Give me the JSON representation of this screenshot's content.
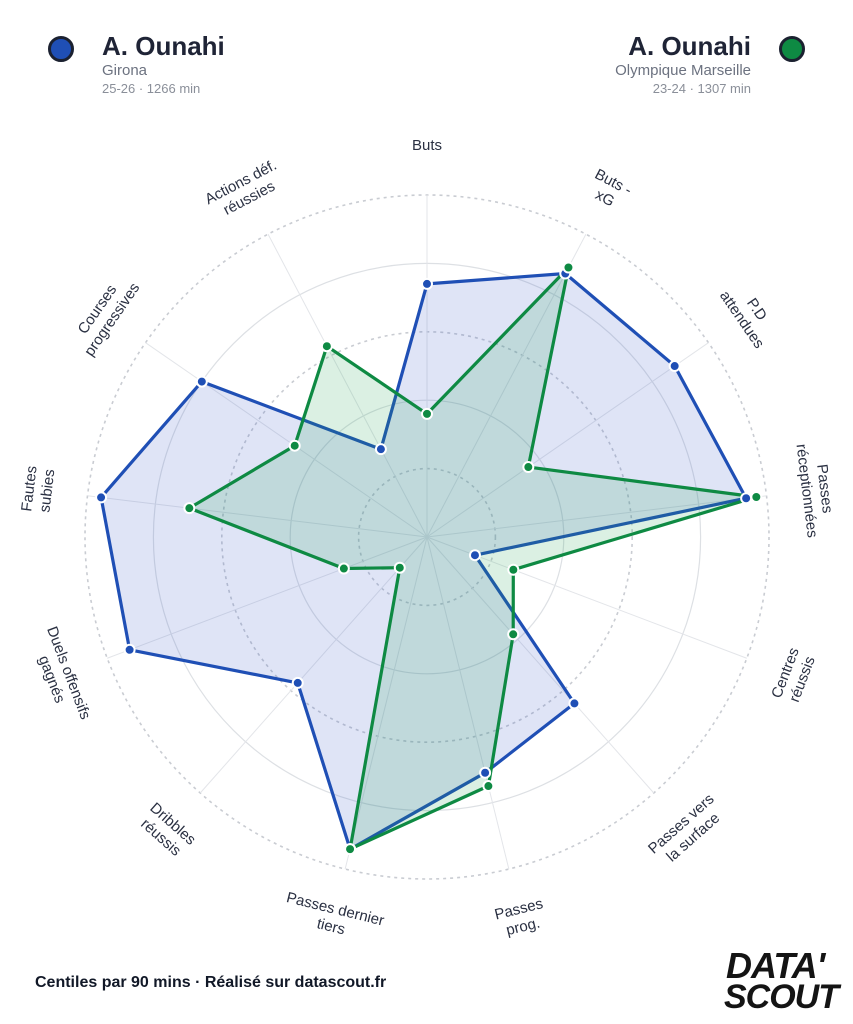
{
  "players": [
    {
      "name": "A. Ounahi",
      "club": "Girona",
      "meta": "25-26 · 1266 min",
      "color": "#1f4fb5",
      "fill": "rgba(57,88,200,0.16)"
    },
    {
      "name": "A. Ounahi",
      "club": "Olympique Marseille",
      "meta": "23-24 · 1307 min",
      "color": "#0e8a43",
      "fill": "rgba(30,160,80,0.16)"
    }
  ],
  "footer": "Centiles par 90 mins · Réalisé sur datascout.fr",
  "logo": {
    "line1": "DATA'",
    "line2": "SCOUT"
  },
  "chart_data": {
    "type": "radar",
    "scale": [
      0,
      100
    ],
    "grid_rings": [
      20,
      40,
      60,
      80,
      100
    ],
    "axes": [
      {
        "label": [
          "Buts"
        ],
        "lines": 1
      },
      {
        "label": [
          "Buts -",
          "xG"
        ]
      },
      {
        "label": [
          "P.D",
          "attendues"
        ]
      },
      {
        "label": [
          "Passes",
          "réceptionnées"
        ]
      },
      {
        "label": [
          "Centres",
          "réussis"
        ]
      },
      {
        "label": [
          "Passes vers",
          "la surface"
        ]
      },
      {
        "label": [
          "Passes",
          "prog."
        ]
      },
      {
        "label": [
          "Passes dernier",
          "tiers"
        ]
      },
      {
        "label": [
          "Dribbles",
          "réussis"
        ]
      },
      {
        "label": [
          "Duels offensifs",
          "gagnés"
        ]
      },
      {
        "label": [
          "Fautes",
          "subies"
        ]
      },
      {
        "label": [
          "Courses",
          "progressives"
        ]
      },
      {
        "label": [
          "Actions déf.",
          "réussies"
        ]
      }
    ],
    "series": [
      {
        "name": "A. Ounahi",
        "values": [
          74,
          87,
          88,
          94,
          15,
          65,
          71,
          94,
          57,
          93,
          96,
          80,
          29
        ]
      },
      {
        "name": "A. Ounahi",
        "values": [
          36,
          89,
          36,
          97,
          27,
          38,
          75,
          94,
          12,
          26,
          70,
          47,
          63
        ]
      }
    ]
  }
}
